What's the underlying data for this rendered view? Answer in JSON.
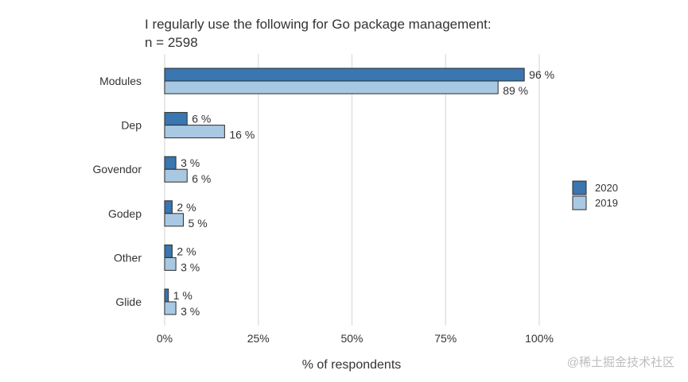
{
  "chart_data": {
    "type": "bar",
    "orientation": "horizontal",
    "title": "I regularly use the following for Go package management:",
    "subtitle": "n = 2598",
    "xlabel": "% of respondents",
    "ylabel": "",
    "xlim": [
      0,
      100
    ],
    "xticks": [
      "0%",
      "25%",
      "50%",
      "75%",
      "100%"
    ],
    "xtick_values": [
      0,
      25,
      50,
      75,
      100
    ],
    "grid": "vertical",
    "legend_position": "right",
    "categories": [
      "Modules",
      "Dep",
      "Govendor",
      "Godep",
      "Other",
      "Glide"
    ],
    "series": [
      {
        "name": "2020",
        "color": "#3a76b0",
        "values": [
          96,
          6,
          3,
          2,
          2,
          1
        ],
        "labels": [
          "96 %",
          "6 %",
          "3 %",
          "2 %",
          "2 %",
          "1 %"
        ]
      },
      {
        "name": "2019",
        "color": "#a9c9e3",
        "values": [
          89,
          16,
          6,
          5,
          3,
          3
        ],
        "labels": [
          "89 %",
          "16 %",
          "6 %",
          "5 %",
          "3 %",
          "3 %"
        ]
      }
    ]
  },
  "watermark": "@稀土掘金技术社区"
}
